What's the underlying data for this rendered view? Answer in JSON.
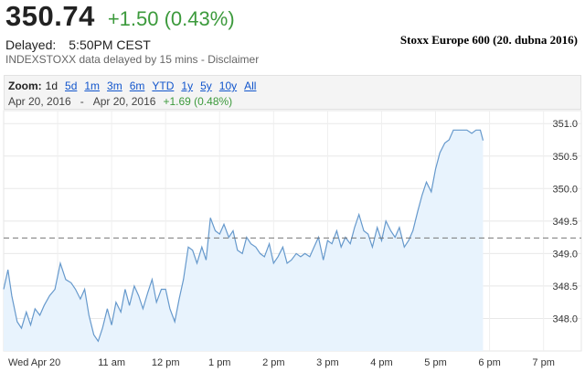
{
  "quote": {
    "price": "350.74",
    "change": "+1.50 (0.43%)",
    "delayed_label": "Delayed:",
    "delayed_time": "5:50PM CEST",
    "source_note": "INDEXSTOXX data delayed by 15 mins - Disclaimer"
  },
  "caption": "Stoxx Europe 600 (20. dubna 2016)",
  "zoom": {
    "label": "Zoom:",
    "options": [
      "1d",
      "5d",
      "1m",
      "3m",
      "6m",
      "YTD",
      "1y",
      "5y",
      "10y",
      "All"
    ],
    "active": "1d"
  },
  "range": {
    "from": "Apr 20, 2016",
    "separator": "-",
    "to": "Apr 20, 2016",
    "change": "+1.69 (0.48%)"
  },
  "colors": {
    "line": "#6699cc",
    "fill": "#e8f3fd",
    "positive": "#3c9a3c",
    "link": "#1155cc"
  },
  "chart_data": {
    "type": "area",
    "x_tick_labels": [
      "Wed Apr 20",
      "11 am",
      "12 pm",
      "1 pm",
      "2 pm",
      "3 pm",
      "4 pm",
      "5 pm",
      "6 pm",
      "7 pm"
    ],
    "x_tick_hours": [
      10.0,
      11.0,
      12.0,
      13.0,
      14.0,
      15.0,
      16.0,
      17.0,
      18.0,
      19.0
    ],
    "xlim_hours": [
      9.0,
      19.7
    ],
    "y_ticks": [
      348.0,
      348.5,
      349.0,
      349.5,
      350.0,
      350.5,
      351.0
    ],
    "y_tick_labels": [
      "348.0",
      "348.5",
      "349.0",
      "349.5",
      "350.0",
      "350.5",
      "351.0"
    ],
    "ylim": [
      347.5,
      351.2
    ],
    "previous_close": 349.24,
    "series": [
      {
        "x": [
          9.0,
          9.08,
          9.15,
          9.25,
          9.33,
          9.42,
          9.5,
          9.58,
          9.67,
          9.75,
          9.85,
          9.95,
          10.05,
          10.15,
          10.25,
          10.33,
          10.42,
          10.5,
          10.58,
          10.67,
          10.75,
          10.83,
          10.92,
          11.0,
          11.08,
          11.17,
          11.25,
          11.33,
          11.42,
          11.5,
          11.58,
          11.67,
          11.75,
          11.83,
          11.92,
          12.0,
          12.08,
          12.17,
          12.25,
          12.33,
          12.42,
          12.5,
          12.58,
          12.67,
          12.75,
          12.83,
          12.92,
          13.0,
          13.08,
          13.17,
          13.25,
          13.33,
          13.42,
          13.5,
          13.58,
          13.67,
          13.75,
          13.83,
          13.92,
          14.0,
          14.08,
          14.17,
          14.25,
          14.33,
          14.42,
          14.5,
          14.58,
          14.67,
          14.75,
          14.83,
          14.92,
          15.0,
          15.08,
          15.17,
          15.25,
          15.33,
          15.42,
          15.5,
          15.58,
          15.67,
          15.75,
          15.83,
          15.92,
          16.0,
          16.08,
          16.17,
          16.25,
          16.33,
          16.42,
          16.5,
          16.58,
          16.67,
          16.75,
          16.83,
          16.92,
          17.0,
          17.08,
          17.17,
          17.25,
          17.33,
          17.42,
          17.5,
          17.58,
          17.67,
          17.75,
          17.83,
          17.88
        ],
        "values": [
          348.45,
          348.75,
          348.35,
          347.95,
          347.85,
          348.1,
          347.9,
          348.15,
          348.05,
          348.2,
          348.35,
          348.45,
          348.85,
          348.6,
          348.55,
          348.45,
          348.3,
          348.45,
          348.05,
          347.75,
          347.65,
          347.85,
          348.15,
          347.9,
          348.25,
          348.1,
          348.45,
          348.2,
          348.5,
          348.35,
          348.15,
          348.4,
          348.6,
          348.25,
          348.45,
          348.45,
          348.15,
          347.95,
          348.3,
          348.6,
          349.1,
          349.05,
          348.85,
          349.1,
          348.9,
          349.55,
          349.35,
          349.3,
          349.45,
          349.25,
          349.35,
          349.05,
          349.0,
          349.25,
          349.15,
          349.1,
          349.0,
          348.95,
          349.15,
          348.85,
          348.95,
          349.1,
          348.85,
          348.9,
          349.0,
          348.95,
          349.0,
          348.95,
          349.1,
          349.25,
          348.9,
          349.2,
          349.15,
          349.35,
          349.1,
          349.25,
          349.15,
          349.4,
          349.6,
          349.35,
          349.3,
          349.1,
          349.4,
          349.2,
          349.5,
          349.35,
          349.25,
          349.4,
          349.1,
          349.2,
          349.35,
          349.65,
          349.9,
          350.1,
          349.95,
          350.3,
          350.55,
          350.7,
          350.75,
          350.9,
          350.9,
          350.9,
          350.9,
          350.85,
          350.9,
          350.9,
          350.74
        ]
      }
    ]
  }
}
